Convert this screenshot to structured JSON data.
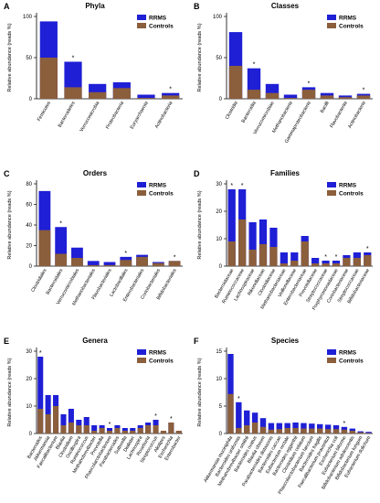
{
  "colors": {
    "rrms": "#1f1fd6",
    "controls": "#8b5e3c",
    "axis": "#000000",
    "star": "#000000"
  },
  "chart_data": [
    {
      "id": "A",
      "title": "Phyla",
      "type": "bar",
      "ylabel": "Relative abundance (reads %)",
      "ylim": [
        0,
        100
      ],
      "yticks": [
        0,
        50,
        100
      ],
      "legend": [
        "RRMS",
        "Controls"
      ],
      "categories": [
        "Firmicutes",
        "Bacteroidetes",
        "Verrucomicrobia",
        "Proteobacteria",
        "Euryarchaeota",
        "Actinobacteria"
      ],
      "series": [
        {
          "name": "RRMS",
          "values": [
            94,
            45,
            18,
            20,
            5,
            7
          ]
        },
        {
          "name": "Controls",
          "values": [
            50,
            14,
            8,
            13,
            1,
            4
          ]
        }
      ],
      "significant": [
        1,
        5
      ]
    },
    {
      "id": "B",
      "title": "Classes",
      "type": "bar",
      "ylabel": "Relative abundance (reads %)",
      "ylim": [
        0,
        100
      ],
      "yticks": [
        0,
        50,
        100
      ],
      "legend": [
        "RRMS",
        "Controls"
      ],
      "categories": [
        "Clostridia",
        "Bacteroidia",
        "Verrucomicrobiae",
        "Methanobacteria",
        "Gammaproteobacteria",
        "Bacilli",
        "Flavobacteriia",
        "Actinobacteria"
      ],
      "series": [
        {
          "name": "RRMS",
          "values": [
            81,
            37,
            18,
            5,
            14,
            7,
            4,
            6
          ]
        },
        {
          "name": "Controls",
          "values": [
            40,
            11,
            7,
            1,
            11,
            4,
            2,
            4
          ]
        }
      ],
      "significant": [
        1,
        4,
        7
      ]
    },
    {
      "id": "C",
      "title": "Orders",
      "type": "bar",
      "ylabel": "Relative abundance (reads %)",
      "ylim": [
        0,
        80
      ],
      "yticks": [
        0,
        20,
        40,
        60,
        80
      ],
      "legend": [
        "RRMS",
        "Controls"
      ],
      "categories": [
        "Clostridiales",
        "Bacteroidales",
        "Verrucomicrobiales",
        "Methanobacteriales",
        "Flavobacteriales",
        "Lactobacillales",
        "Enterobacteriales",
        "Coriobacteriales",
        "Bifidobacteriales"
      ],
      "series": [
        {
          "name": "RRMS",
          "values": [
            73,
            38,
            18,
            5,
            4,
            9,
            11,
            4,
            5
          ]
        },
        {
          "name": "Controls",
          "values": [
            35,
            12,
            8,
            1,
            1,
            6,
            9,
            3,
            5
          ]
        }
      ],
      "significant": [
        1,
        5,
        8
      ]
    },
    {
      "id": "D",
      "title": "Families",
      "type": "bar",
      "ylabel": "Relative abundance (reads %)",
      "ylim": [
        0,
        30
      ],
      "yticks": [
        0,
        10,
        20,
        30
      ],
      "legend": [
        "RRMS",
        "Controls"
      ],
      "categories": [
        "Bacteroidaceae",
        "Ruminococcaceae",
        "Lachnospiraceae",
        "Rikenellaceae",
        "Clostridiaceae",
        "Methanobacteriaceae",
        "Veillonellaceae",
        "Enterobacteriaceae",
        "Prevotellaceae",
        "Streptococcaceae",
        "Porphyromonadaceae",
        "Coriobacteriaceae",
        "Streptococcaceae",
        "Bifidobacteriaceae"
      ],
      "series": [
        {
          "name": "RRMS",
          "values": [
            28,
            28,
            16,
            17,
            14,
            5,
            5,
            11,
            3,
            2,
            2,
            4,
            5,
            5
          ]
        },
        {
          "name": "Controls",
          "values": [
            9,
            17,
            6,
            8,
            7,
            1,
            2,
            9,
            1,
            1,
            1,
            3,
            3,
            4
          ]
        }
      ],
      "significant": [
        0,
        1,
        9,
        10,
        13
      ]
    },
    {
      "id": "E",
      "title": "Genera",
      "type": "bar",
      "ylabel": "Relative abundance (reads %)",
      "ylim": [
        0,
        30
      ],
      "yticks": [
        0,
        10,
        20,
        30
      ],
      "legend": [
        "RRMS",
        "Controls"
      ],
      "categories": [
        "Bacteroides",
        "Akkermansia",
        "Faecalibacterium",
        "Blautia",
        "Clostridium",
        "Oscillospira",
        "Ruminococcus",
        "Methanobrevibacter",
        "Prevotella",
        "Phascolarctobacterium",
        "Parabacteroides",
        "Sutterella",
        "Dialister",
        "Lachnospira",
        "Roseburia",
        "Streptococcus",
        "Alistipes",
        "Escherichia",
        "Enterobacter"
      ],
      "series": [
        {
          "name": "RRMS",
          "values": [
            28,
            14,
            14,
            7,
            9,
            5,
            6,
            3,
            3,
            2,
            3,
            2,
            2,
            3,
            4,
            5,
            1,
            4,
            1
          ]
        },
        {
          "name": "Controls",
          "values": [
            9,
            7,
            10,
            3,
            4,
            3,
            3,
            1,
            2,
            1,
            2,
            1,
            1,
            2,
            3,
            3,
            1,
            4,
            1
          ]
        }
      ],
      "significant": [
        0,
        9,
        15,
        17
      ]
    },
    {
      "id": "F",
      "title": "Species",
      "type": "bar",
      "ylabel": "Relative abundance (reads %)",
      "ylim": [
        0,
        15
      ],
      "yticks": [
        0,
        5,
        10,
        15
      ],
      "legend": [
        "RRMS",
        "Controls"
      ],
      "categories": [
        "Akkermansia muciniphila",
        "Bacteroides uniformis",
        "Methanobrevibacter smithii",
        "Bacteroides ovatus",
        "Blautia obeum",
        "Parabacteroides distasonis",
        "Bacteroides caccae",
        "Eubacterium rectale",
        "Bacteroides eggerthii",
        "Clostridium celatum",
        "Phascolarctobacterium faecium",
        "Bacteroides fragilis",
        "Faecalibacterium prausnitzii",
        "Escherichia coli",
        "Eubacterium biforme",
        "Bifidobacterium adolescentis",
        "Bifidobacterium longum",
        "Eubacterium dolichum"
      ],
      "series": [
        {
          "name": "RRMS",
          "values": [
            14.5,
            5.7,
            4.2,
            3.8,
            2.8,
            1.9,
            1.9,
            1.9,
            2.0,
            1.9,
            1.8,
            1.7,
            1.6,
            1.5,
            1.2,
            0.9,
            0.4,
            0.3
          ]
        },
        {
          "name": "Controls",
          "values": [
            7.2,
            1.0,
            1.5,
            2.0,
            1.2,
            0.7,
            0.8,
            1.0,
            1.0,
            0.9,
            0.9,
            0.9,
            0.8,
            0.8,
            0.7,
            0.5,
            0.2,
            0.1
          ]
        }
      ],
      "significant": [
        1,
        14
      ]
    }
  ]
}
